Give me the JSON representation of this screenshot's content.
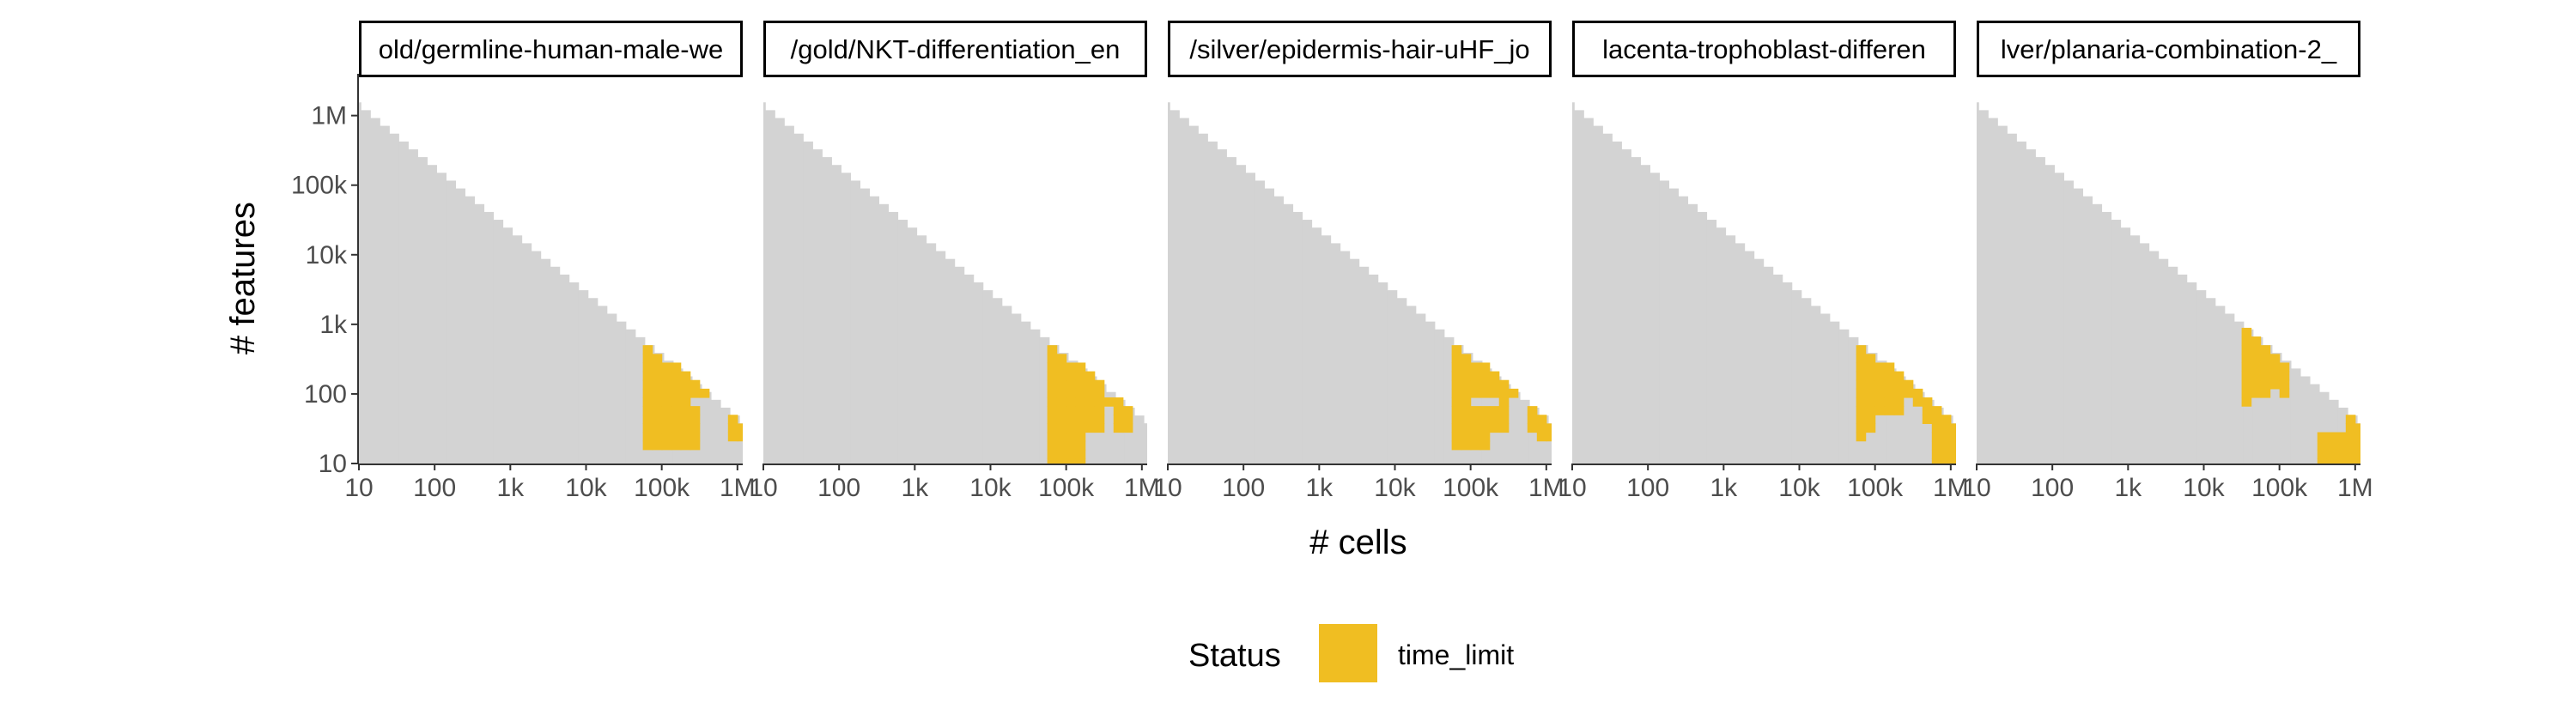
{
  "chart_data": {
    "type": "heatmap",
    "xlabel": "# cells",
    "ylabel": "# features",
    "x_scale": "log10",
    "y_scale": "log10",
    "x_ticks": [
      "10",
      "100",
      "1k",
      "10k",
      "100k",
      "1M"
    ],
    "y_ticks": [
      "10",
      "100",
      "1k",
      "10k",
      "100k",
      "1M"
    ],
    "legend": {
      "title": "Status",
      "position": "bottom",
      "entries": [
        {
          "label": "time_limit",
          "color": "#f0be22"
        }
      ]
    },
    "colors": {
      "time_limit": "#f0be22",
      "background_cell": "#d3d3d3",
      "strip_border": "#000000"
    },
    "grid": false,
    "panels": [
      {
        "label": "old/germline-human-male-we",
        "time_limit_cells": [
          [
            16,
            16
          ],
          [
            16,
            17
          ],
          [
            16,
            18
          ],
          [
            16,
            19
          ],
          [
            16,
            20
          ],
          [
            16,
            21
          ],
          [
            16,
            22
          ],
          [
            16,
            23
          ],
          [
            16,
            24
          ],
          [
            16,
            25
          ],
          [
            16,
            26
          ],
          [
            16,
            27
          ],
          [
            16,
            28
          ],
          [
            16,
            29
          ],
          [
            16,
            30
          ],
          [
            16,
            31
          ],
          [
            16,
            32
          ],
          [
            16,
            33
          ],
          [
            16,
            34
          ],
          [
            16,
            35
          ],
          [
            16,
            36
          ],
          [
            16,
            37
          ],
          [
            16,
            38
          ],
          [
            16,
            39
          ],
          [
            16,
            40
          ],
          [
            16,
            41
          ],
          [
            16,
            42
          ],
          [
            16,
            43
          ],
          [
            16,
            44
          ],
          [
            16,
            45
          ],
          [
            16,
            46
          ],
          [
            16,
            47
          ],
          [
            16,
            48
          ],
          [
            16,
            49
          ],
          [
            16,
            50
          ],
          [
            16,
            51
          ],
          [
            16,
            52
          ],
          [
            16,
            53
          ],
          [
            16,
            54
          ],
          [
            16,
            55
          ],
          [
            16,
            56
          ],
          [
            16,
            57
          ],
          [
            16,
            58
          ],
          [
            16,
            59
          ],
          [
            16,
            60
          ],
          [
            16,
            61
          ],
          [
            16,
            62
          ],
          [
            16,
            63
          ],
          [
            16,
            64
          ],
          [
            16,
            65
          ],
          [
            16,
            66
          ],
          [
            16,
            67
          ],
          [
            16,
            68
          ],
          [
            16,
            69
          ],
          [
            16,
            70
          ],
          [
            16,
            71
          ],
          [
            16,
            72
          ],
          [
            16,
            73
          ],
          [
            16,
            74
          ],
          [
            16,
            75
          ]
        ]
      },
      {
        "label": "/gold/NKT-differentiation_en",
        "time_limit_cells": []
      },
      {
        "label": "/silver/epidermis-hair-uHF_jo",
        "time_limit_cells": []
      },
      {
        "label": "lacenta-trophoblast-differen",
        "time_limit_cells": []
      },
      {
        "label": "lver/planaria-combination-2_",
        "time_limit_cells": []
      }
    ]
  }
}
